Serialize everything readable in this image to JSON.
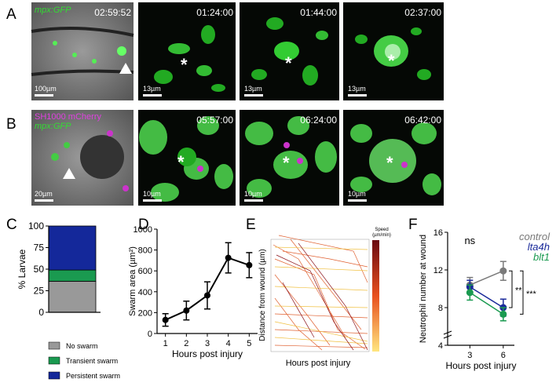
{
  "panel_labels": [
    "A",
    "B",
    "C",
    "D",
    "E",
    "F"
  ],
  "row_a": {
    "channel": "mpx:GFP",
    "timestamps": [
      "02:59:52",
      "01:24:00",
      "01:44:00",
      "02:37:00"
    ],
    "scale_bars": [
      "100µm",
      "13µm",
      "13µm",
      "13µm"
    ]
  },
  "row_b": {
    "channels": [
      "SH1000 mCherry",
      "mpx:GFP"
    ],
    "timestamps": [
      "05:57:00",
      "06:24:00",
      "06:42:00"
    ],
    "scale_bars": [
      "20µm",
      "10µm",
      "10µm",
      "10µm"
    ]
  },
  "wound_marker": "*",
  "panel_e": {
    "y_label": "Distance from wound (µm)",
    "x_label": "Hours post injury",
    "colorbar_label": [
      "Speed",
      "(µm/min)"
    ]
  },
  "chart_data": [
    {
      "type": "stacked_bar",
      "categories": [
        null
      ],
      "y_label": "% Larvae",
      "ylim": [
        0,
        100
      ],
      "yticks": [
        0,
        25,
        50,
        75,
        100
      ],
      "series": [
        {
          "name": "No swarm",
          "color": "#999999",
          "values": [
            36
          ]
        },
        {
          "name": "Transient swarm",
          "color": "#1a9a50",
          "values": [
            13
          ]
        },
        {
          "name": "Persistent swarm",
          "color": "#14289a",
          "values": [
            51
          ]
        }
      ]
    },
    {
      "type": "line",
      "x": [
        1,
        2,
        3,
        4,
        5
      ],
      "values": [
        130,
        220,
        365,
        725,
        655
      ],
      "errors": [
        60,
        90,
        130,
        145,
        120
      ],
      "color": "#000000",
      "xlim": [
        0.6,
        5.4
      ],
      "xticks": [
        1,
        2,
        3,
        4,
        5
      ],
      "ylim": [
        0,
        1000
      ],
      "yticks": [
        0,
        200,
        400,
        600,
        800,
        1000
      ],
      "x_label": "Hours post injury",
      "y_label": "Swarm area (µm²)"
    },
    {
      "type": "multi_line",
      "x": [
        3,
        6
      ],
      "xlim": [
        1,
        7
      ],
      "xticks": [
        3,
        6
      ],
      "ylim": [
        4,
        16
      ],
      "yticks": [
        4,
        8,
        12,
        16
      ],
      "x_label": "Hours post injury",
      "y_label": "Neutrophil number at wound",
      "annotations": [
        "ns",
        "**",
        "***"
      ],
      "series": [
        {
          "name": "control",
          "color": "#7a7a7a",
          "values": [
            10.4,
            11.9
          ],
          "errors": [
            0.8,
            1.0
          ]
        },
        {
          "name": "lta4h",
          "color": "#1a2a9a",
          "values": [
            10.2,
            8.0
          ],
          "errors": [
            0.7,
            0.9
          ]
        },
        {
          "name": "blt1",
          "color": "#1a9a50",
          "values": [
            9.6,
            7.3
          ],
          "errors": [
            0.8,
            0.7
          ]
        }
      ]
    }
  ]
}
